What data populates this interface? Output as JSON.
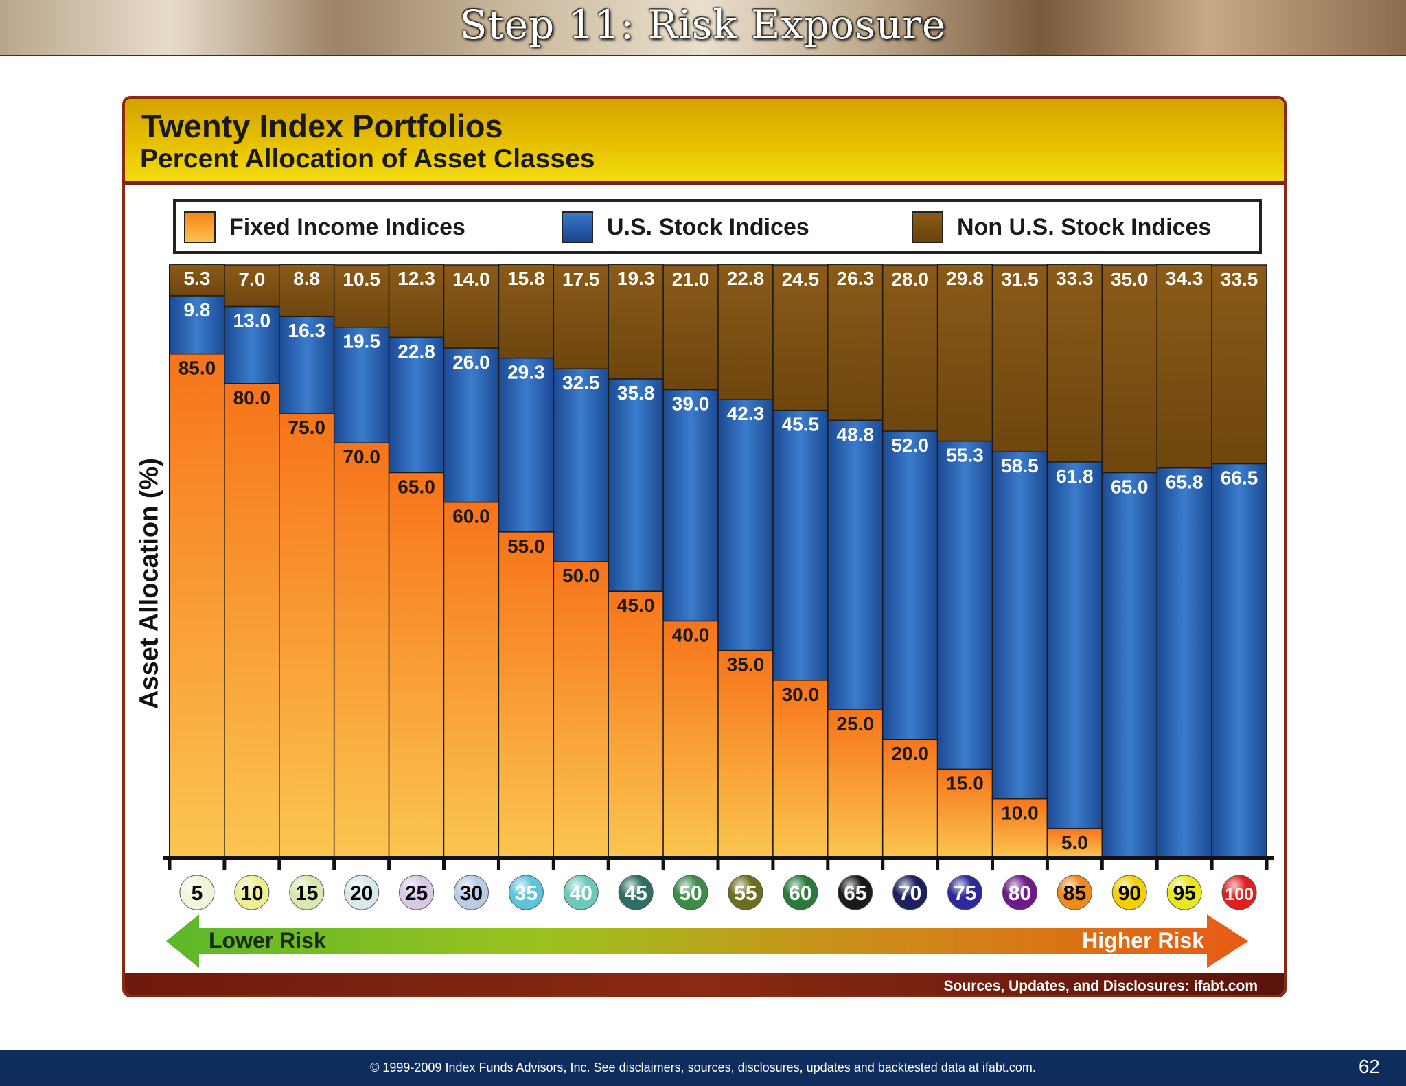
{
  "banner": {
    "title": "Step 11: Risk Exposure"
  },
  "colors": {
    "fixed": "#f7931e",
    "us": "#2a5eaa",
    "nonus": "#7a4e12",
    "accent": "#e8c400"
  },
  "legend": {
    "fixed_label": "Fixed Income Indices",
    "us_label": "U.S. Stock Indices",
    "nonus_label": "Non U.S. Stock Indices"
  },
  "risk": {
    "lower": "Lower Risk",
    "higher": "Higher Risk"
  },
  "source": "Sources, Updates, and Disclosures: ifabt.com",
  "footer": {
    "copyright": "© 1999-2009 Index Funds Advisors, Inc. See disclaimers, sources, disclosures, updates and backtested data at ifabt.com.",
    "page": "62"
  },
  "chart_data": {
    "type": "bar",
    "stacked": true,
    "title": "Twenty Index Portfolios",
    "subtitle": "Percent Allocation of Asset Classes",
    "ylabel": "Asset Allocation (%)",
    "xlabel": "",
    "ylim": [
      0,
      100
    ],
    "categories": [
      "5",
      "10",
      "15",
      "20",
      "25",
      "30",
      "35",
      "40",
      "45",
      "50",
      "55",
      "60",
      "65",
      "70",
      "75",
      "80",
      "85",
      "90",
      "95",
      "100"
    ],
    "category_colors": [
      "#f4f4d8",
      "#eeee90",
      "#d8e8b0",
      "#d8e8ec",
      "#d8c8e4",
      "#b8cce4",
      "#5cc4dc",
      "#6cc8b8",
      "#2e6e64",
      "#3a8c46",
      "#6e6e20",
      "#2a7a3a",
      "#1a1a1a",
      "#1c2060",
      "#2c2a9a",
      "#6e1a8a",
      "#f08a18",
      "#f4d000",
      "#e8e820",
      "#e02020"
    ],
    "category_text_colors": [
      "#000",
      "#000",
      "#000",
      "#000",
      "#000",
      "#000",
      "#fff",
      "#fff",
      "#fff",
      "#fff",
      "#fff",
      "#fff",
      "#fff",
      "#fff",
      "#fff",
      "#fff",
      "#000",
      "#000",
      "#000",
      "#fff"
    ],
    "series": [
      {
        "name": "Fixed Income Indices",
        "values": [
          85.0,
          80.0,
          75.0,
          70.0,
          65.0,
          60.0,
          55.0,
          50.0,
          45.0,
          40.0,
          35.0,
          30.0,
          25.0,
          20.0,
          15.0,
          10.0,
          5.0,
          0,
          0,
          0
        ],
        "labels": [
          "85.0",
          "80.0",
          "75.0",
          "70.0",
          "65.0",
          "60.0",
          "55.0",
          "50.0",
          "45.0",
          "40.0",
          "35.0",
          "30.0",
          "25.0",
          "20.0",
          "15.0",
          "10.0",
          "5.0",
          "",
          "",
          ""
        ]
      },
      {
        "name": "U.S. Stock Indices",
        "values": [
          9.8,
          13.0,
          16.3,
          19.5,
          22.8,
          26.0,
          29.3,
          32.5,
          35.8,
          39.0,
          42.3,
          45.5,
          48.8,
          52.0,
          55.3,
          58.5,
          61.8,
          65.0,
          65.8,
          66.5
        ],
        "labels": [
          "9.8",
          "13.0",
          "16.3",
          "19.5",
          "22.8",
          "26.0",
          "29.3",
          "32.5",
          "35.8",
          "39.0",
          "42.3",
          "45.5",
          "48.8",
          "52.0",
          "55.3",
          "58.5",
          "61.8",
          "65.0",
          "65.8",
          "66.5"
        ]
      },
      {
        "name": "Non U.S. Stock Indices",
        "values": [
          5.3,
          7.0,
          8.8,
          10.5,
          12.3,
          14.0,
          15.8,
          17.5,
          19.3,
          21.0,
          22.8,
          24.5,
          26.3,
          28.0,
          29.8,
          31.5,
          33.3,
          35.0,
          34.3,
          33.5
        ],
        "labels": [
          "5.3",
          "7.0",
          "8.8",
          "10.5",
          "12.3",
          "14.0",
          "15.8",
          "17.5",
          "19.3",
          "21.0",
          "22.8",
          "24.5",
          "26.3",
          "28.0",
          "29.8",
          "31.5",
          "33.3",
          "35.0",
          "34.3",
          "33.5"
        ]
      }
    ],
    "legend": "top",
    "grid": false
  }
}
